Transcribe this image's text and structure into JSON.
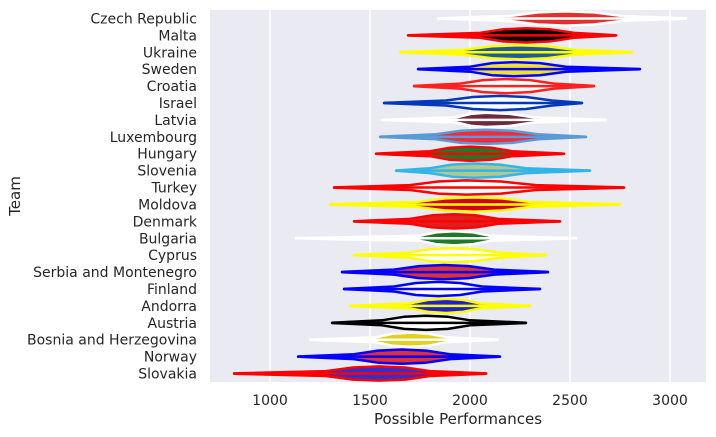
{
  "chart_data": {
    "type": "violin",
    "orientation": "horizontal",
    "xlabel": "Possible Performances",
    "ylabel": "Team",
    "xlim": [
      700,
      3180
    ],
    "xticks": [
      1000,
      1500,
      2000,
      2500,
      3000
    ],
    "grid": true,
    "background": "#EAEAF2",
    "teams": [
      {
        "name": "Czech Republic",
        "min": 1840,
        "max": 3080,
        "center": 2480,
        "q1": 2200,
        "q3": 2760,
        "fill": "#E03030",
        "line": "#FFFFFF"
      },
      {
        "name": "Malta",
        "min": 1690,
        "max": 2730,
        "center": 2280,
        "q1": 2050,
        "q3": 2520,
        "fill": "#000000",
        "line": "#FF0000"
      },
      {
        "name": "Ukraine",
        "min": 1650,
        "max": 2810,
        "center": 2250,
        "q1": 1970,
        "q3": 2520,
        "fill": "#1F5AA0",
        "line": "#FFFF00"
      },
      {
        "name": "Sweden",
        "min": 1740,
        "max": 2850,
        "center": 2220,
        "q1": 2000,
        "q3": 2480,
        "fill": "#F0E030",
        "line": "#0000FF"
      },
      {
        "name": "Croatia",
        "min": 1720,
        "max": 2620,
        "center": 2180,
        "q1": 1950,
        "q3": 2420,
        "fill": "#FFFFFF",
        "line": "#FF2020"
      },
      {
        "name": "Israel",
        "min": 1570,
        "max": 2560,
        "center": 2150,
        "q1": 1880,
        "q3": 2410,
        "fill": "#FFFFFF",
        "line": "#0038B8"
      },
      {
        "name": "Latvia",
        "min": 1560,
        "max": 2680,
        "center": 2080,
        "q1": 1930,
        "q3": 2320,
        "fill": "#6E2A3A",
        "line": "#FFFFFF"
      },
      {
        "name": "Luxembourg",
        "min": 1550,
        "max": 2580,
        "center": 2080,
        "q1": 1830,
        "q3": 2340,
        "fill": "#EF2B3D",
        "line": "#5B9BD5"
      },
      {
        "name": "Hungary",
        "min": 1530,
        "max": 2470,
        "center": 2000,
        "q1": 1800,
        "q3": 2210,
        "fill": "#1E7A2A",
        "line": "#FF0000"
      },
      {
        "name": "Slovenia",
        "min": 1630,
        "max": 2600,
        "center": 2020,
        "q1": 1800,
        "q3": 2280,
        "fill": "#B0C890",
        "line": "#33B5E8"
      },
      {
        "name": "Turkey",
        "min": 1320,
        "max": 2770,
        "center": 1980,
        "q1": 1700,
        "q3": 2330,
        "fill": "#FFFFFF",
        "line": "#FF0000"
      },
      {
        "name": "Moldova",
        "min": 1300,
        "max": 2750,
        "center": 2020,
        "q1": 1730,
        "q3": 2300,
        "fill": "#D2001C",
        "line": "#FFFF00"
      },
      {
        "name": "Denmark",
        "min": 1420,
        "max": 2450,
        "center": 1920,
        "q1": 1700,
        "q3": 2140,
        "fill": "#E01F1F",
        "line": "#FF0000"
      },
      {
        "name": "Bulgaria",
        "min": 1130,
        "max": 2530,
        "center": 1920,
        "q1": 1750,
        "q3": 2100,
        "fill": "#1E7A2A",
        "line": "#FFFFFF"
      },
      {
        "name": "Cyprus",
        "min": 1420,
        "max": 2380,
        "center": 1900,
        "q1": 1690,
        "q3": 2150,
        "fill": "#FFFFFF",
        "line": "#FFFF00"
      },
      {
        "name": "Serbia and Montenegro",
        "min": 1360,
        "max": 2390,
        "center": 1870,
        "q1": 1620,
        "q3": 2120,
        "fill": "#E03030",
        "line": "#0000FF"
      },
      {
        "name": "Finland",
        "min": 1370,
        "max": 2350,
        "center": 1840,
        "q1": 1620,
        "q3": 2060,
        "fill": "#FFFFFF",
        "line": "#0000FF"
      },
      {
        "name": "Andorra",
        "min": 1400,
        "max": 2300,
        "center": 1880,
        "q1": 1700,
        "q3": 2050,
        "fill": "#2020D0",
        "line": "#FFFF00"
      },
      {
        "name": "Austria",
        "min": 1310,
        "max": 2280,
        "center": 1780,
        "q1": 1560,
        "q3": 2000,
        "fill": "#FFFFFF",
        "line": "#000000"
      },
      {
        "name": "Bosnia and Herzegovina",
        "min": 1200,
        "max": 2140,
        "center": 1700,
        "q1": 1530,
        "q3": 1880,
        "fill": "#E0D020",
        "line": "#FFFFFF"
      },
      {
        "name": "Norway",
        "min": 1140,
        "max": 2150,
        "center": 1660,
        "q1": 1420,
        "q3": 1900,
        "fill": "#E03030",
        "line": "#0000FF"
      },
      {
        "name": "Slovakia",
        "min": 820,
        "max": 2080,
        "center": 1550,
        "q1": 1280,
        "q3": 1800,
        "fill": "#3030D0",
        "line": "#FF0000"
      }
    ]
  }
}
